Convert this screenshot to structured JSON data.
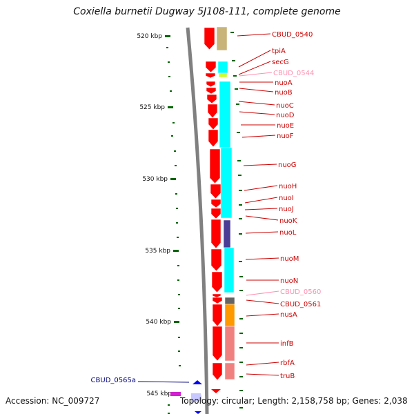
{
  "title": "Coxiella burnetii Dugway 5J108-111, complete genome",
  "accession_text": "Accession: NC_009727",
  "topology_text": "Topology: circular; Length: 2,158,758 bp; Genes: 2,038",
  "colors": {
    "gene_forward": "#ff0000",
    "gene_reverse": "#0000ff",
    "cds_cyan": "#00ffff",
    "cds_khaki": "#c8b478",
    "cds_lime": "#ccff33",
    "cds_indigo": "#4b3c96",
    "cds_gray": "#646464",
    "cds_orange": "#ff9900",
    "cds_salmon": "#f08080",
    "label_red": "#cc0000",
    "label_pink": "#ff8fb0",
    "label_blue": "#00007f",
    "tick_green": "#006400",
    "backbone": "#808080"
  },
  "scale": {
    "unit": "kbp",
    "labels": [
      "520 kbp",
      "525 kbp",
      "530 kbp",
      "535 kbp",
      "540 kbp",
      "545 kbp"
    ]
  },
  "genes": [
    {
      "name": "CBUD_0540",
      "color": "label_red"
    },
    {
      "name": "tpiA",
      "color": "label_red"
    },
    {
      "name": "secG",
      "color": "label_red"
    },
    {
      "name": "CBUD_0544",
      "color": "label_pink"
    },
    {
      "name": "nuoA",
      "color": "label_red"
    },
    {
      "name": "nuoB",
      "color": "label_red"
    },
    {
      "name": "nuoC",
      "color": "label_red"
    },
    {
      "name": "nuoD",
      "color": "label_red"
    },
    {
      "name": "nuoE",
      "color": "label_red"
    },
    {
      "name": "nuoF",
      "color": "label_red"
    },
    {
      "name": "nuoG",
      "color": "label_red"
    },
    {
      "name": "nuoH",
      "color": "label_red"
    },
    {
      "name": "nuoI",
      "color": "label_red"
    },
    {
      "name": "nuoJ",
      "color": "label_red"
    },
    {
      "name": "nuoK",
      "color": "label_red"
    },
    {
      "name": "nuoL",
      "color": "label_red"
    },
    {
      "name": "nuoM",
      "color": "label_red"
    },
    {
      "name": "nuoN",
      "color": "label_red"
    },
    {
      "name": "CBUD_0560",
      "color": "label_pink"
    },
    {
      "name": "CBUD_0561",
      "color": "label_red"
    },
    {
      "name": "nusA",
      "color": "label_red"
    },
    {
      "name": "infB",
      "color": "label_red"
    },
    {
      "name": "rbfA",
      "color": "label_red"
    },
    {
      "name": "truB",
      "color": "label_red"
    },
    {
      "name": "CBUD_0565a",
      "color": "label_blue"
    }
  ]
}
